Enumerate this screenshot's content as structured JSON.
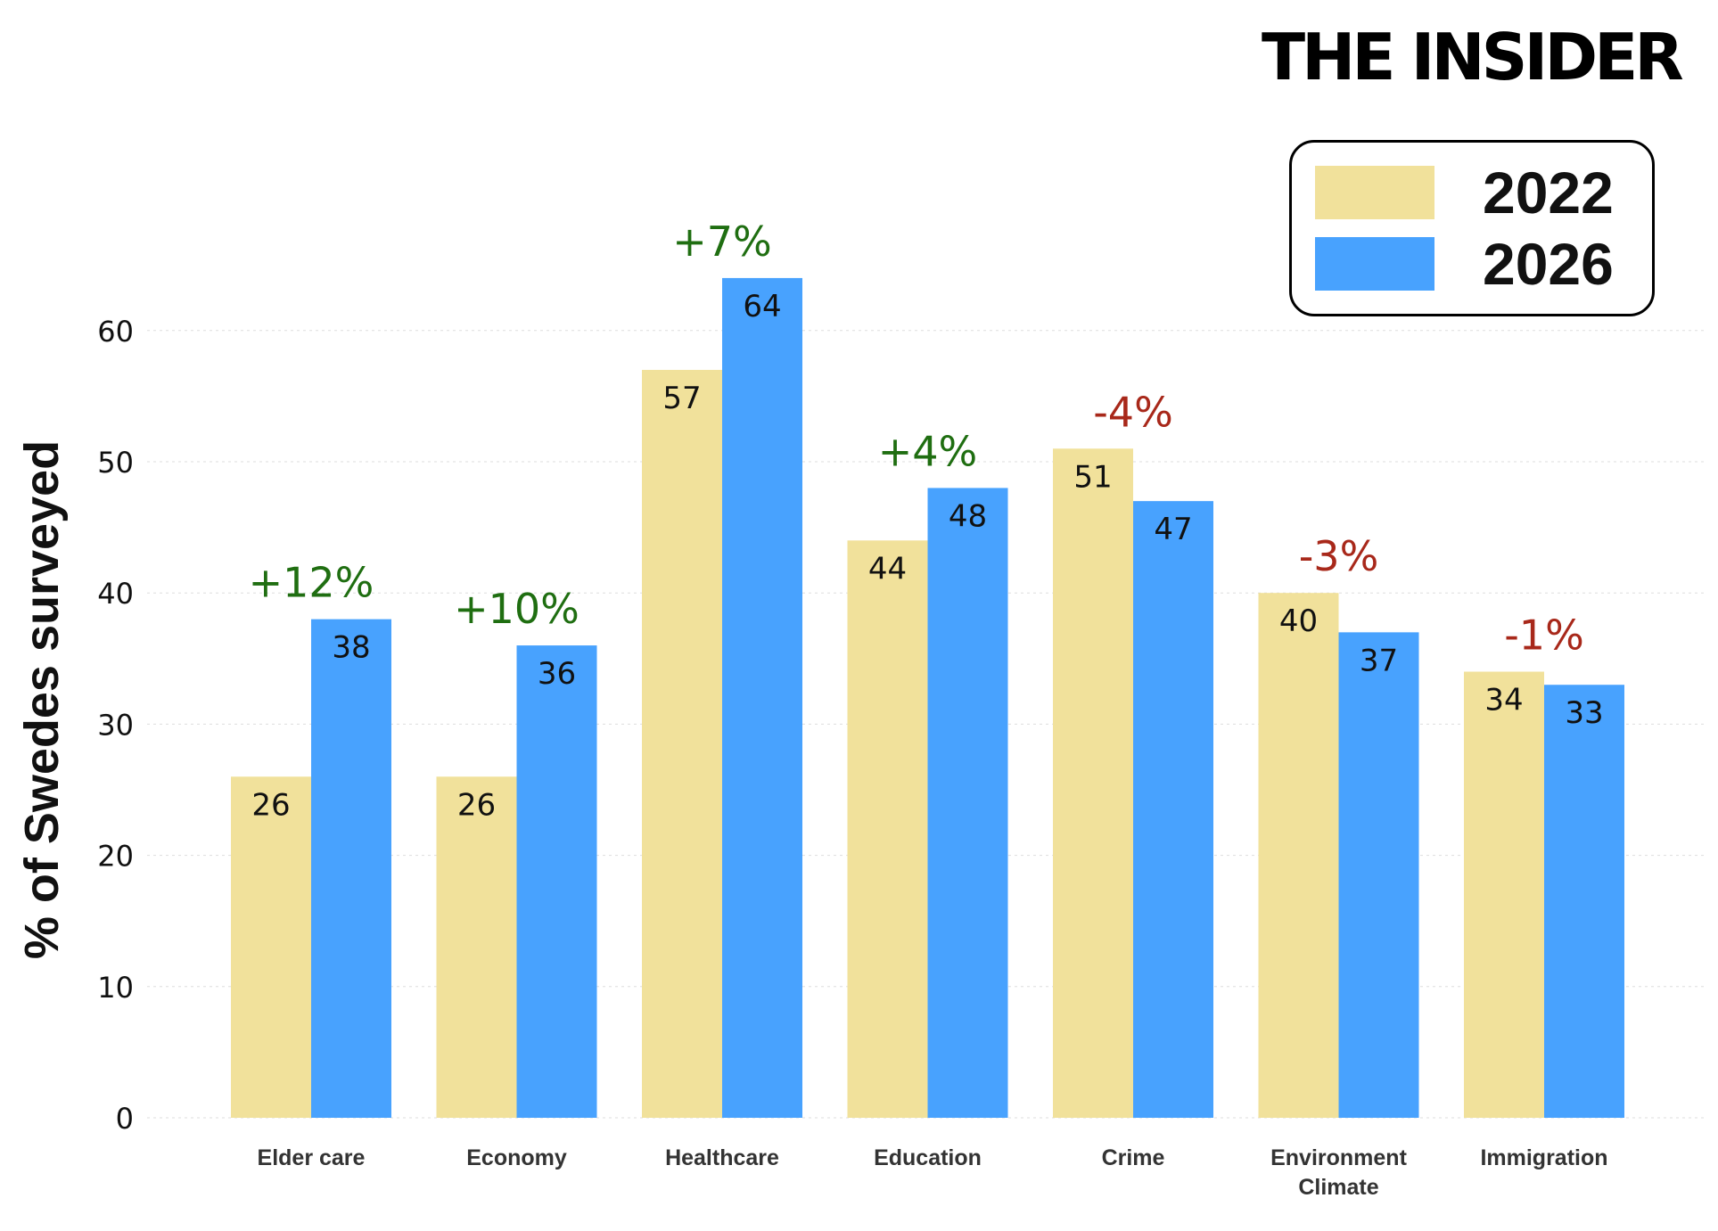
{
  "brand": {
    "name": "THE INSIDER"
  },
  "colors": {
    "y2022": "#f1e19b",
    "y2026": "#48a2fe",
    "positive": "#1f6e11",
    "negative": "#a8281a",
    "text": "#111111",
    "grid": "#dddddd"
  },
  "legend": [
    {
      "label": "2022",
      "color": "#f1e19b"
    },
    {
      "label": "2026",
      "color": "#48a2fe"
    }
  ],
  "chart_data": {
    "type": "bar",
    "title": "",
    "xlabel": "",
    "ylabel": "% of Swedes surveyed",
    "ylim": [
      0,
      68
    ],
    "yticks": [
      0,
      10,
      20,
      30,
      40,
      50,
      60
    ],
    "grid": true,
    "legend_position": "top-right",
    "categories": [
      [
        "Elder care"
      ],
      [
        "Economy"
      ],
      [
        "Healthcare"
      ],
      [
        "Education"
      ],
      [
        "Crime"
      ],
      [
        "Environment",
        "Climate"
      ],
      [
        "Immigration"
      ]
    ],
    "series": [
      {
        "name": "2022",
        "color": "#f1e19b",
        "values": [
          26,
          26,
          57,
          44,
          51,
          40,
          34
        ]
      },
      {
        "name": "2026",
        "color": "#48a2fe",
        "values": [
          38,
          36,
          64,
          48,
          47,
          37,
          33
        ]
      }
    ],
    "changes": [
      "+12%",
      "+10%",
      "+7%",
      "+4%",
      "-4%",
      "-3%",
      "-1%"
    ]
  }
}
